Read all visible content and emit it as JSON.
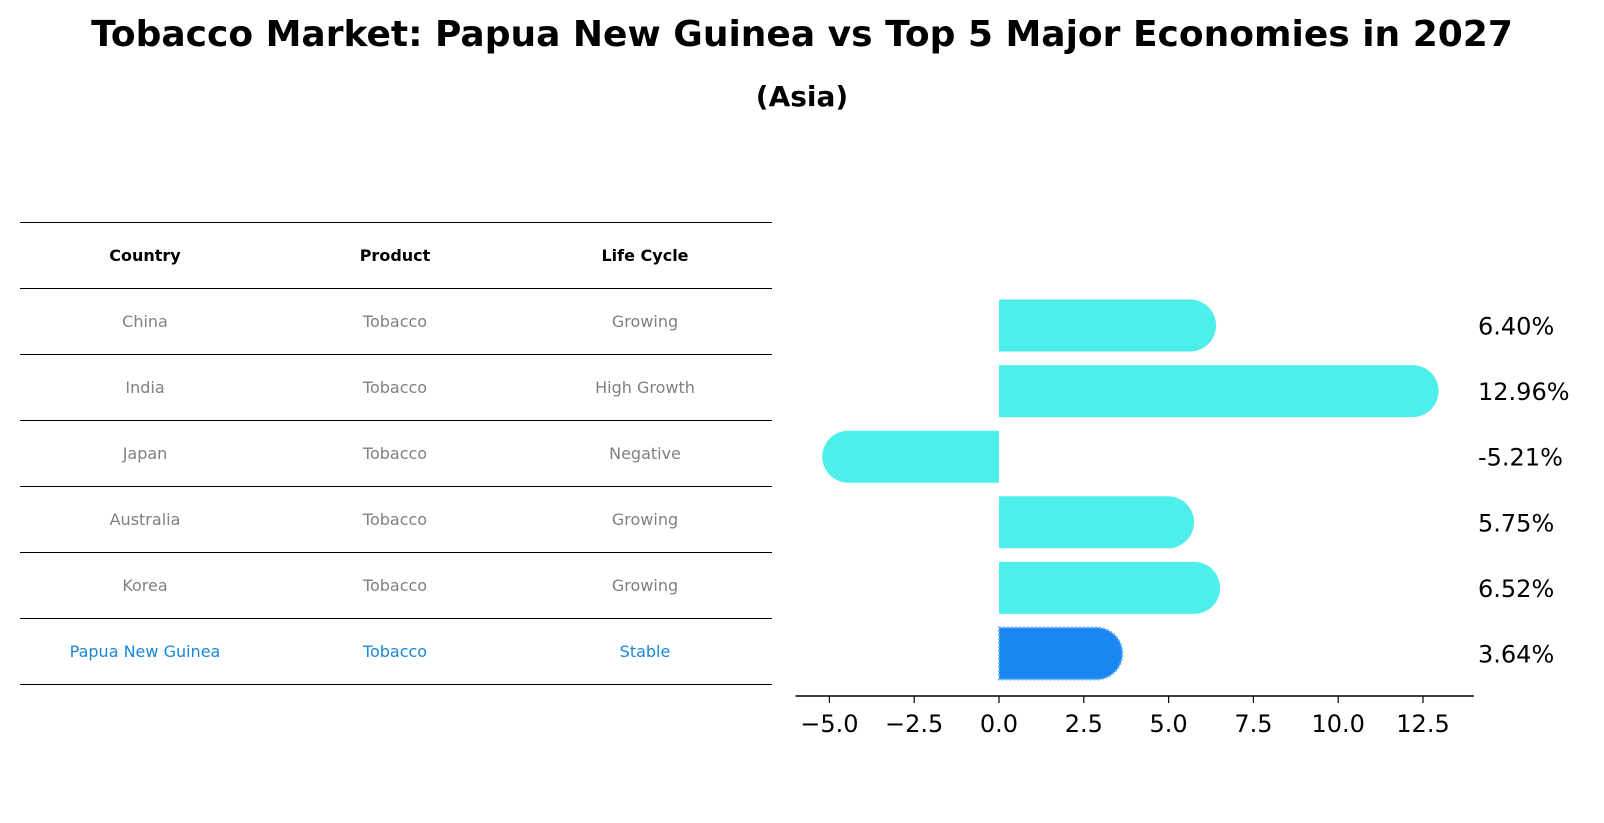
{
  "title": "Tobacco Market: Papua New Guinea vs Top 5 Major Economies in 2027",
  "subtitle": "(Asia)",
  "table": {
    "headers": [
      "Country",
      "Product",
      "Life Cycle"
    ],
    "rows": [
      [
        "China",
        "Tobacco",
        "Growing"
      ],
      [
        "India",
        "Tobacco",
        "High Growth"
      ],
      [
        "Japan",
        "Tobacco",
        "Negative"
      ],
      [
        "Australia",
        "Tobacco",
        "Growing"
      ],
      [
        "Korea",
        "Tobacco",
        "Growing"
      ],
      [
        "Papua New Guinea",
        "Tobacco",
        "Stable"
      ]
    ],
    "highlight_row": 5
  },
  "chart_data": {
    "type": "bar",
    "orientation": "horizontal",
    "categories": [
      "China",
      "India",
      "Japan",
      "Australia",
      "Korea",
      "Papua New Guinea"
    ],
    "values": [
      6.4,
      12.96,
      -5.21,
      5.75,
      6.52,
      3.64
    ],
    "value_labels": [
      "6.40%",
      "12.96%",
      "-5.21%",
      "5.75%",
      "6.52%",
      "3.64%"
    ],
    "xlim": [
      -6,
      14
    ],
    "xticks": [
      -5.0,
      -2.5,
      0.0,
      2.5,
      5.0,
      7.5,
      10.0,
      12.5
    ],
    "xtick_labels": [
      "−5.0",
      "−2.5",
      "0.0",
      "2.5",
      "5.0",
      "7.5",
      "10.0",
      "12.5"
    ],
    "grid": false,
    "colors": {
      "default": "#4eeeeb",
      "highlight": "#1a87f2"
    }
  }
}
